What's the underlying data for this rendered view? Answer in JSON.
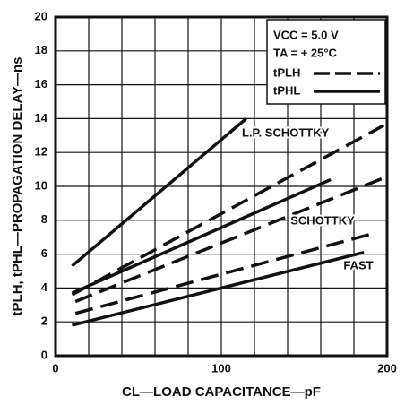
{
  "chart_data": {
    "type": "line",
    "xlabel": "CL—LOAD CAPACITANCE—pF",
    "ylabel": "tPLH, tPHL—PROPAGATION DELAY—ns",
    "xlim": [
      0,
      200
    ],
    "ylim": [
      0,
      20
    ],
    "xticks": [
      0,
      100,
      200
    ],
    "xminor": [
      20,
      40,
      60,
      80,
      120,
      140,
      160,
      180
    ],
    "yticks": [
      0,
      2,
      4,
      6,
      8,
      10,
      12,
      14,
      16,
      18,
      20
    ],
    "grid": true,
    "color": "#111111",
    "conditions": [
      "VCC = 5.0 V",
      "TA = + 25°C"
    ],
    "families": [
      "L.P. SCHOTTKY",
      "SCHOTTKY",
      "FAST"
    ],
    "series": [
      {
        "name": "tPLH",
        "dashed": true,
        "x": [
          10,
          198
        ],
        "values": [
          3.6,
          13.6
        ]
      },
      {
        "name": "tPHL",
        "dashed": false,
        "x": [
          10,
          115
        ],
        "values": [
          5.3,
          14.0
        ]
      },
      {
        "name": "tPLH",
        "dashed": true,
        "x": [
          12,
          198
        ],
        "values": [
          3.2,
          10.5
        ]
      },
      {
        "name": "tPHL",
        "dashed": false,
        "x": [
          10,
          166
        ],
        "values": [
          3.7,
          10.4
        ]
      },
      {
        "name": "tPLH",
        "dashed": true,
        "x": [
          12,
          191
        ],
        "values": [
          2.5,
          7.2
        ]
      },
      {
        "name": "tPHL",
        "dashed": false,
        "x": [
          10,
          186
        ],
        "values": [
          1.8,
          6.1
        ]
      }
    ]
  }
}
